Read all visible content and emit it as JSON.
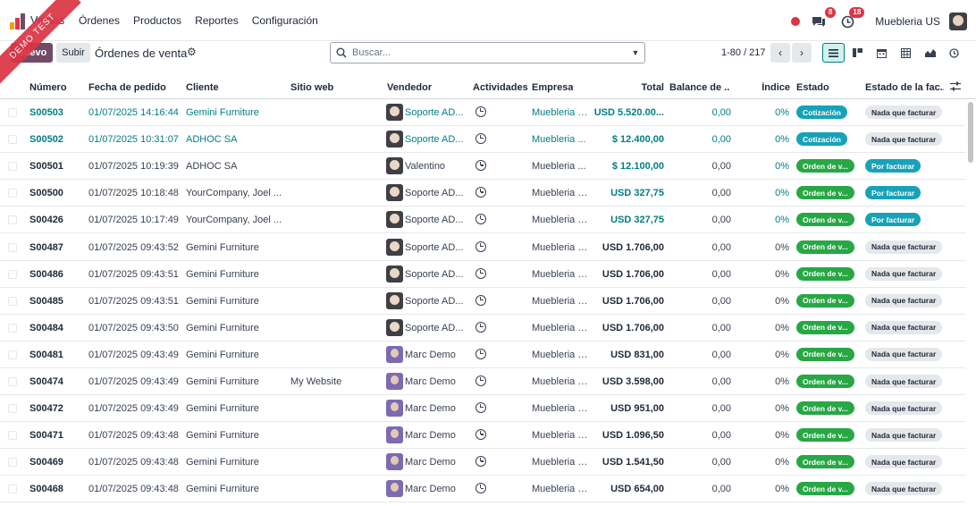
{
  "navbar": {
    "app_name": "Ventas",
    "menu": [
      "Órdenes",
      "Productos",
      "Reportes",
      "Configuración"
    ],
    "messages_count": "8",
    "activities_count": "18",
    "company": "Muebleria US",
    "ribbon": "DEMO TEST"
  },
  "control_panel": {
    "new_label": "Nuevo",
    "upload_label": "Subir",
    "title": "Órdenes de venta",
    "search_placeholder": "Buscar...",
    "pager": "1-80 / 217"
  },
  "table": {
    "headers": {
      "number": "Número",
      "date": "Fecha de pedido",
      "customer": "Cliente",
      "website": "Sitio web",
      "salesperson": "Vendedor",
      "activities": "Actividades",
      "company": "Empresa",
      "total": "Total",
      "balance": "Balance de ...",
      "index": "Índice",
      "state": "Estado",
      "invoice_state": "Estado de la fac..."
    },
    "rows": [
      {
        "number": "S00503",
        "date": "01/07/2025 14:16:44",
        "customer": "Gemini Furniture",
        "website": "",
        "salesperson": "Soporte AD...",
        "avatar": "admin",
        "company": "Muebleria US",
        "total": "USD 5.520.00...",
        "balance": "0,00",
        "index": "0%",
        "state": "Cotización",
        "state_color": "cyan",
        "invoice": "Nada que facturar",
        "invoice_color": "grey",
        "style": "teal"
      },
      {
        "number": "S00502",
        "date": "01/07/2025 10:31:07",
        "customer": "ADHOC SA",
        "website": "",
        "salesperson": "Soporte AD...",
        "avatar": "admin",
        "company": "Muebleria ...",
        "total": "$ 12.400,00",
        "balance": "0,00",
        "index": "0%",
        "state": "Cotización",
        "state_color": "cyan",
        "invoice": "Nada que facturar",
        "invoice_color": "grey",
        "style": "teal"
      },
      {
        "number": "S00501",
        "date": "01/07/2025 10:19:39",
        "customer": "ADHOC SA",
        "website": "",
        "salesperson": "Valentino",
        "avatar": "admin",
        "company": "Muebleria ...",
        "total": "$ 12.100,00",
        "balance": "0,00",
        "index": "0%",
        "state": "Orden de v...",
        "state_color": "green",
        "invoice": "Por facturar",
        "invoice_color": "cyan",
        "style": "hl"
      },
      {
        "number": "S00500",
        "date": "01/07/2025 10:18:48",
        "customer": "YourCompany, Joel ...",
        "website": "",
        "salesperson": "Soporte AD...",
        "avatar": "admin",
        "company": "Muebleria US",
        "total": "USD 327,75",
        "balance": "0,00",
        "index": "0%",
        "state": "Orden de v...",
        "state_color": "green",
        "invoice": "Por facturar",
        "invoice_color": "cyan",
        "style": "hl"
      },
      {
        "number": "S00426",
        "date": "01/07/2025 10:17:49",
        "customer": "YourCompany, Joel ...",
        "website": "",
        "salesperson": "Soporte AD...",
        "avatar": "admin",
        "company": "Muebleria US",
        "total": "USD 327,75",
        "balance": "0,00",
        "index": "0%",
        "state": "Orden de v...",
        "state_color": "green",
        "invoice": "Por facturar",
        "invoice_color": "cyan",
        "style": "hl"
      },
      {
        "number": "S00487",
        "date": "01/07/2025 09:43:52",
        "customer": "Gemini Furniture",
        "website": "",
        "salesperson": "Soporte AD...",
        "avatar": "admin",
        "company": "Muebleria US",
        "total": "USD 1.706,00",
        "balance": "0,00",
        "index": "0%",
        "state": "Orden de v...",
        "state_color": "green",
        "invoice": "Nada que facturar",
        "invoice_color": "grey",
        "style": "normal"
      },
      {
        "number": "S00486",
        "date": "01/07/2025 09:43:51",
        "customer": "Gemini Furniture",
        "website": "",
        "salesperson": "Soporte AD...",
        "avatar": "admin",
        "company": "Muebleria US",
        "total": "USD 1.706,00",
        "balance": "0,00",
        "index": "0%",
        "state": "Orden de v...",
        "state_color": "green",
        "invoice": "Nada que facturar",
        "invoice_color": "grey",
        "style": "normal"
      },
      {
        "number": "S00485",
        "date": "01/07/2025 09:43:51",
        "customer": "Gemini Furniture",
        "website": "",
        "salesperson": "Soporte AD...",
        "avatar": "admin",
        "company": "Muebleria US",
        "total": "USD 1.706,00",
        "balance": "0,00",
        "index": "0%",
        "state": "Orden de v...",
        "state_color": "green",
        "invoice": "Nada que facturar",
        "invoice_color": "grey",
        "style": "normal"
      },
      {
        "number": "S00484",
        "date": "01/07/2025 09:43:50",
        "customer": "Gemini Furniture",
        "website": "",
        "salesperson": "Soporte AD...",
        "avatar": "admin",
        "company": "Muebleria US",
        "total": "USD 1.706,00",
        "balance": "0,00",
        "index": "0%",
        "state": "Orden de v...",
        "state_color": "green",
        "invoice": "Nada que facturar",
        "invoice_color": "grey",
        "style": "normal"
      },
      {
        "number": "S00481",
        "date": "01/07/2025 09:43:49",
        "customer": "Gemini Furniture",
        "website": "",
        "salesperson": "Marc Demo",
        "avatar": "marc",
        "company": "Muebleria US",
        "total": "USD 831,00",
        "balance": "0,00",
        "index": "0%",
        "state": "Orden de v...",
        "state_color": "green",
        "invoice": "Nada que facturar",
        "invoice_color": "grey",
        "style": "normal"
      },
      {
        "number": "S00474",
        "date": "01/07/2025 09:43:49",
        "customer": "Gemini Furniture",
        "website": "My Website",
        "salesperson": "Marc Demo",
        "avatar": "marc",
        "company": "Muebleria US",
        "total": "USD 3.598,00",
        "balance": "0,00",
        "index": "0%",
        "state": "Orden de v...",
        "state_color": "green",
        "invoice": "Nada que facturar",
        "invoice_color": "grey",
        "style": "normal"
      },
      {
        "number": "S00472",
        "date": "01/07/2025 09:43:49",
        "customer": "Gemini Furniture",
        "website": "",
        "salesperson": "Marc Demo",
        "avatar": "marc",
        "company": "Muebleria US",
        "total": "USD 951,00",
        "balance": "0,00",
        "index": "0%",
        "state": "Orden de v...",
        "state_color": "green",
        "invoice": "Nada que facturar",
        "invoice_color": "grey",
        "style": "normal"
      },
      {
        "number": "S00471",
        "date": "01/07/2025 09:43:48",
        "customer": "Gemini Furniture",
        "website": "",
        "salesperson": "Marc Demo",
        "avatar": "marc",
        "company": "Muebleria US",
        "total": "USD 1.096,50",
        "balance": "0,00",
        "index": "0%",
        "state": "Orden de v...",
        "state_color": "green",
        "invoice": "Nada que facturar",
        "invoice_color": "grey",
        "style": "normal"
      },
      {
        "number": "S00469",
        "date": "01/07/2025 09:43:48",
        "customer": "Gemini Furniture",
        "website": "",
        "salesperson": "Marc Demo",
        "avatar": "marc",
        "company": "Muebleria US",
        "total": "USD 1.541,50",
        "balance": "0,00",
        "index": "0%",
        "state": "Orden de v...",
        "state_color": "green",
        "invoice": "Nada que facturar",
        "invoice_color": "grey",
        "style": "normal"
      },
      {
        "number": "S00468",
        "date": "01/07/2025 09:43:48",
        "customer": "Gemini Furniture",
        "website": "",
        "salesperson": "Marc Demo",
        "avatar": "marc",
        "company": "Muebleria US",
        "total": "USD 654,00",
        "balance": "0,00",
        "index": "0%",
        "state": "Orden de v...",
        "state_color": "green",
        "invoice": "Nada que facturar",
        "invoice_color": "grey",
        "style": "normal"
      }
    ]
  }
}
